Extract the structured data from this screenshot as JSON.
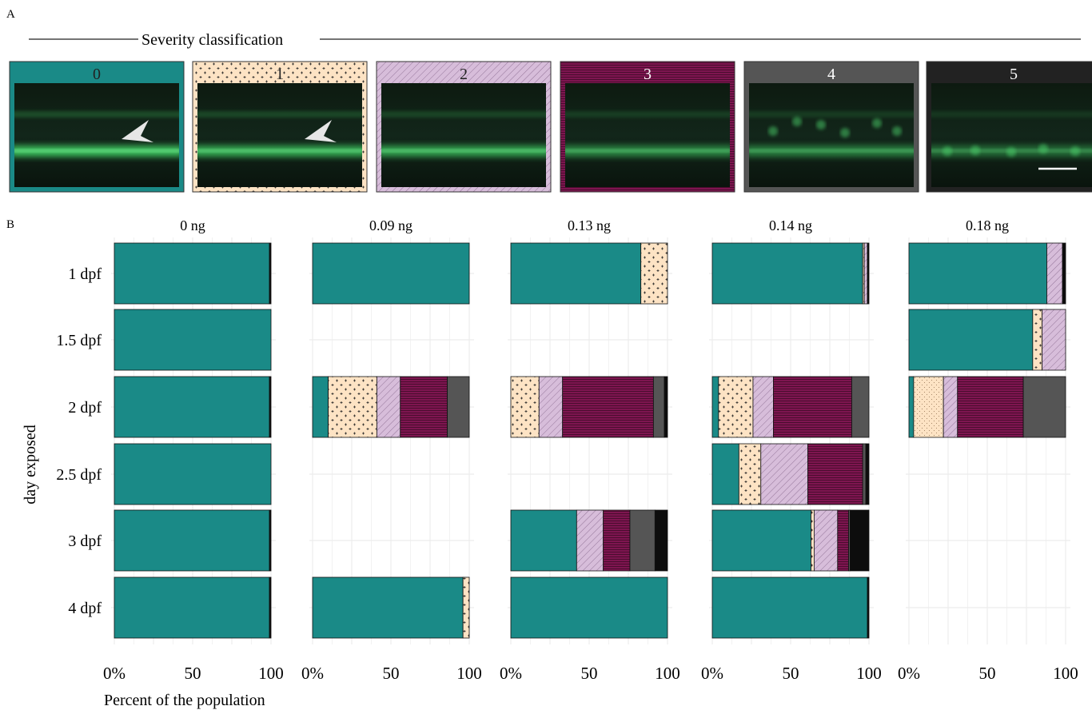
{
  "panel_a": {
    "label": "A",
    "section_title": "Severity classification",
    "classes": [
      {
        "label": "0",
        "color": "#1a8a87",
        "pattern": "none"
      },
      {
        "label": "1",
        "color": "#fde3c4",
        "pattern": "plus"
      },
      {
        "label": "2",
        "color": "#d7bdda",
        "pattern": "diagonal"
      },
      {
        "label": "3",
        "color": "#7e1550",
        "pattern": "horizontal"
      },
      {
        "label": "4",
        "color": "#555555",
        "pattern": "none"
      },
      {
        "label": "5",
        "color": "#222222",
        "pattern": "none"
      }
    ],
    "arrows_on": [
      "0",
      "1"
    ],
    "scale_bar_on": "5"
  },
  "panel_b": {
    "label": "B",
    "ylabel": "day exposed",
    "xlabel": "Percent of the population",
    "row_labels": [
      "1 dpf",
      "1.5 dpf",
      "2 dpf",
      "2.5 dpf",
      "3 dpf",
      "4 dpf"
    ],
    "x_ticks": [
      "0%",
      "50",
      "100"
    ],
    "class_colors": {
      "0": "#1a8a87",
      "1": "#fde3c4",
      "2": "#d7bdda",
      "3": "#7e1550",
      "4": "#555555",
      "5": "#0d0d0d"
    }
  },
  "chart_data": {
    "type": "bar",
    "orientation": "horizontal",
    "stacked": true,
    "xlabel": "Percent of the population",
    "ylabel": "day exposed",
    "xlim": [
      0,
      100
    ],
    "grid": true,
    "categories": [
      "1 dpf",
      "1.5 dpf",
      "2 dpf",
      "2.5 dpf",
      "3 dpf",
      "4 dpf"
    ],
    "facets": [
      {
        "name": "0 ng",
        "bars": {
          "1 dpf": [
            99,
            0,
            0,
            0,
            0,
            1
          ],
          "1.5 dpf": [
            100,
            0,
            0,
            0,
            0,
            0
          ],
          "2 dpf": [
            99,
            0,
            0,
            0,
            0,
            1
          ],
          "2.5 dpf": [
            100,
            0,
            0,
            0,
            0,
            0
          ],
          "3 dpf": [
            99,
            0,
            0,
            0,
            0,
            1
          ],
          "4 dpf": [
            99,
            0,
            0,
            0,
            0,
            1
          ]
        }
      },
      {
        "name": "0.09 ng",
        "bars": {
          "1 dpf": [
            100,
            0,
            0,
            0,
            0,
            0
          ],
          "2 dpf": [
            10,
            31,
            15,
            30,
            14,
            0
          ],
          "4 dpf": [
            96,
            4,
            0,
            0,
            0,
            0
          ]
        }
      },
      {
        "name": "0.13 ng",
        "bars": {
          "1 dpf": [
            83,
            17,
            0,
            0,
            0,
            0
          ],
          "2 dpf": [
            0,
            18,
            15,
            58,
            7,
            2
          ],
          "3 dpf": [
            42,
            0,
            17,
            17,
            16,
            8
          ],
          "4 dpf": [
            100,
            0,
            0,
            0,
            0,
            0
          ]
        }
      },
      {
        "name": "0.14 ng",
        "bars": {
          "1 dpf": [
            96,
            1,
            2,
            0,
            0,
            1
          ],
          "2 dpf": [
            4,
            22,
            13,
            50,
            11,
            0
          ],
          "2.5 dpf": [
            17,
            14,
            30,
            35,
            2,
            2
          ],
          "3 dpf": [
            63,
            2,
            15,
            7,
            1,
            12
          ],
          "4 dpf": [
            99,
            0,
            0,
            0,
            0,
            1
          ]
        }
      },
      {
        "name": "0.18 ng",
        "bars": {
          "1 dpf": [
            88,
            0,
            10,
            0,
            0,
            2
          ],
          "1.5 dpf": [
            79,
            6,
            15,
            0,
            0,
            0
          ],
          "2 dpf": [
            3,
            19,
            9,
            42,
            27,
            0
          ]
        }
      }
    ],
    "series_order": [
      "0",
      "1",
      "2",
      "3",
      "4",
      "5"
    ]
  }
}
